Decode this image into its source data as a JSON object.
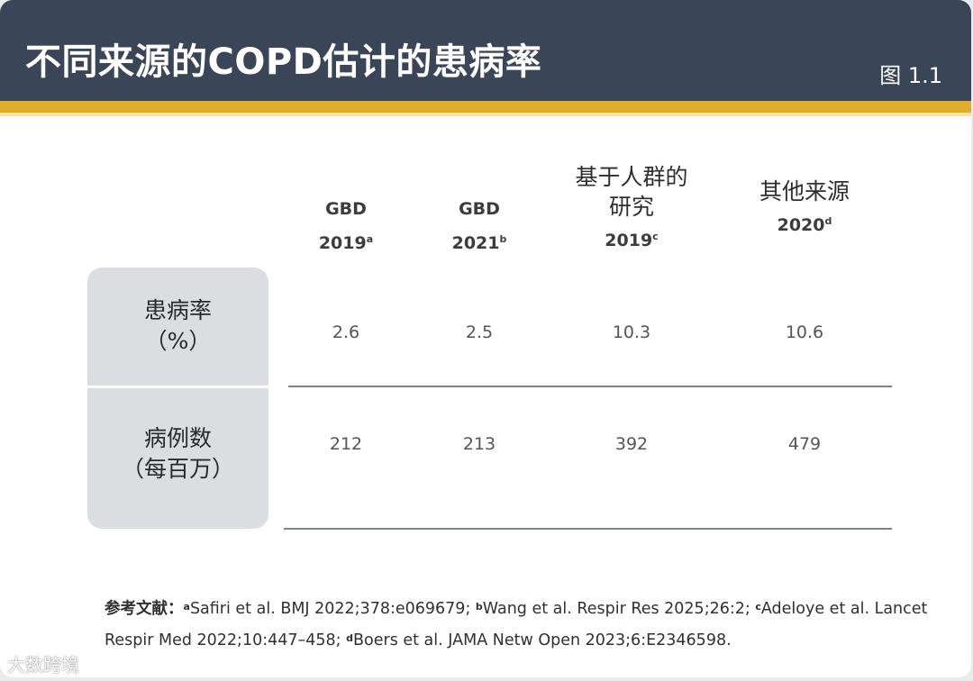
{
  "header": {
    "title": "不同来源的COPD估计的患病率",
    "figure_label": "图 1.1"
  },
  "columns": [
    {
      "line1": "GBD",
      "line2": "2019",
      "sup": "a"
    },
    {
      "line1": "GBD",
      "line2": "2021",
      "sup": "b"
    },
    {
      "line1a": "基于人群的",
      "line1b": "研究",
      "line2": "2019",
      "sup": "c"
    },
    {
      "line1": "其他来源",
      "line2": "2020",
      "sup": "d"
    }
  ],
  "rows": [
    {
      "label_line1": "患病率",
      "label_line2": "（%）",
      "values": [
        "2.6",
        "2.5",
        "10.3",
        "10.6"
      ]
    },
    {
      "label_line1": "病例数",
      "label_line2": "（每百万）",
      "values": [
        "212",
        "213",
        "392",
        "479"
      ]
    }
  ],
  "references": {
    "label": "参考文献：",
    "items": [
      {
        "sup": "a",
        "text": "Safiri et al. BMJ 2022;378:e069679; "
      },
      {
        "sup": "b",
        "text": "Wang et al. Respir Res 2025;26:2; "
      },
      {
        "sup": "c",
        "text": "Adeloye et al. Lancet Respir Med 2022;10:447–458; "
      },
      {
        "sup": "d",
        "text": "Boers et al. JAMA Netw Open 2023;6:E2346598."
      }
    ]
  },
  "watermark": "大数跨境"
}
